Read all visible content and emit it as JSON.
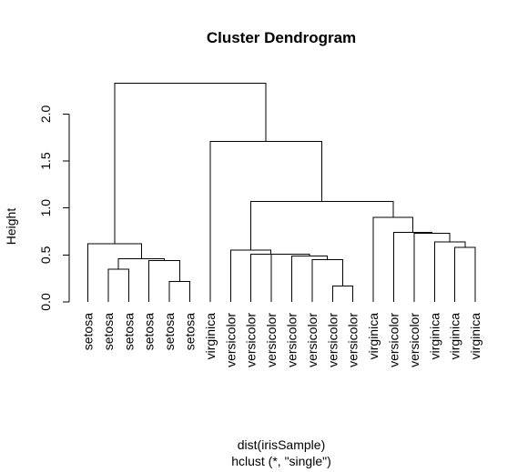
{
  "chart_data": {
    "type": "dendrogram",
    "title": "Cluster Dendrogram",
    "ylabel": "Height",
    "xlabel_line1": "dist(irisSample)",
    "xlabel_line2": "hclust (*, \"single\")",
    "ylim": [
      0,
      2.3
    ],
    "yticks": [
      "0.0",
      "0.5",
      "1.0",
      "1.5",
      "2.0"
    ],
    "ytick_values": [
      0,
      0.5,
      1.0,
      1.5,
      2.0
    ],
    "leaves": [
      "setosa",
      "setosa",
      "setosa",
      "setosa",
      "setosa",
      "setosa",
      "virginica",
      "versicolor",
      "versicolor",
      "versicolor",
      "versicolor",
      "versicolor",
      "versicolor",
      "versicolor",
      "virginica",
      "versicolor",
      "versicolor",
      "virginica",
      "virginica",
      "virginica"
    ],
    "merges": [
      {
        "left": [
          "leaf",
          13
        ],
        "right": [
          "leaf",
          14
        ],
        "height": 0.17
      },
      {
        "left": [
          "leaf",
          5
        ],
        "right": [
          "leaf",
          6
        ],
        "height": 0.22
      },
      {
        "left": [
          "leaf",
          2
        ],
        "right": [
          "leaf",
          3
        ],
        "height": 0.35
      },
      {
        "left": [
          "leaf",
          4
        ],
        "right": [
          "node",
          1
        ],
        "height": 0.44
      },
      {
        "left": [
          "leaf",
          12
        ],
        "right": [
          "node",
          0
        ],
        "height": 0.45
      },
      {
        "left": [
          "node",
          2
        ],
        "right": [
          "node",
          3
        ],
        "height": 0.46
      },
      {
        "left": [
          "leaf",
          11
        ],
        "right": [
          "node",
          4
        ],
        "height": 0.49
      },
      {
        "left": [
          "leaf",
          10
        ],
        "right": [
          "node",
          6
        ],
        "height": 0.51
      },
      {
        "left": [
          "leaf",
          9
        ],
        "right": [
          "node",
          7
        ],
        "height": 0.51
      },
      {
        "left": [
          "leaf",
          8
        ],
        "right": [
          "node",
          8
        ],
        "height": 0.55
      },
      {
        "left": [
          "leaf",
          19
        ],
        "right": [
          "leaf",
          20
        ],
        "height": 0.58
      },
      {
        "left": [
          "leaf",
          1
        ],
        "right": [
          "node",
          5
        ],
        "height": 0.62
      },
      {
        "left": [
          "leaf",
          18
        ],
        "right": [
          "node",
          10
        ],
        "height": 0.64
      },
      {
        "left": [
          "leaf",
          17
        ],
        "right": [
          "node",
          12
        ],
        "height": 0.73
      },
      {
        "left": [
          "leaf",
          16
        ],
        "right": [
          "node",
          13
        ],
        "height": 0.74
      },
      {
        "left": [
          "leaf",
          15
        ],
        "right": [
          "node",
          14
        ],
        "height": 0.9
      },
      {
        "left": [
          "node",
          9
        ],
        "right": [
          "node",
          15
        ],
        "height": 1.07
      },
      {
        "left": [
          "leaf",
          7
        ],
        "right": [
          "node",
          16
        ],
        "height": 1.71
      },
      {
        "left": [
          "node",
          11
        ],
        "right": [
          "node",
          17
        ],
        "height": 2.33
      }
    ]
  }
}
